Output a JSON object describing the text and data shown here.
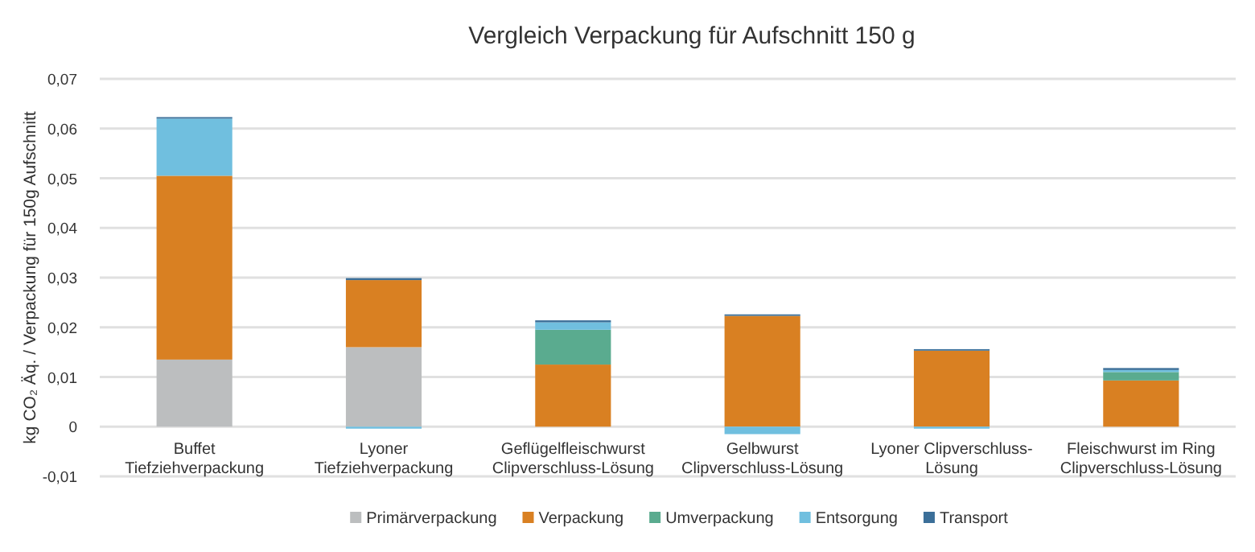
{
  "chart_data": {
    "type": "bar",
    "title": "Vergleich Verpackung für Aufschnitt 150 g",
    "ylabel": "kg CO₂ Äq. / Verpackung für 150g Aufschnitt",
    "stacked": true,
    "grid": "y",
    "legend": "bottom",
    "categories": [
      "Buffet Tiefziehverpackung",
      "Lyoner Tiefziehverpackung",
      "Geflügelfleischwurst Clipverschluss-Lösung",
      "Gelbwurst Clipverschluss-Lösung",
      "Lyoner Clipverschluss-Lösung",
      "Fleischwurst im Ring Clipverschluss-Lösung"
    ],
    "ylim": [
      -0.01,
      0.07
    ],
    "yticks": [
      {
        "value": -0.01,
        "label": "-0,01"
      },
      0,
      {
        "value": 0.01,
        "label": "0,01"
      },
      {
        "value": 0.02,
        "label": "0,02"
      },
      {
        "value": 0.03,
        "label": "0,03"
      },
      {
        "value": 0.04,
        "label": "0,04"
      },
      {
        "value": 0.05,
        "label": "0,05"
      },
      {
        "value": 0.06,
        "label": "0,06"
      },
      {
        "value": 0.07,
        "label": "0,07"
      }
    ],
    "series": [
      {
        "name": "Primärverpackung",
        "color": "#bcbebf",
        "values": [
          0.0135,
          0.016,
          0,
          0,
          0,
          0
        ]
      },
      {
        "name": "Verpackung",
        "color": "#d98022",
        "values": [
          0.037,
          0.0135,
          0.0125,
          0.0223,
          0.0153,
          0.0093
        ]
      },
      {
        "name": "Umverpackung",
        "color": "#5aab8f",
        "values": [
          0,
          0,
          0.007,
          0,
          0,
          0.0017
        ]
      },
      {
        "name": "Entsorgung",
        "color": "#70bfdf",
        "values": [
          0.0115,
          -0.0004,
          0.0015,
          -0.0015,
          -0.0004,
          0.0004
        ]
      },
      {
        "name": "Transport",
        "color": "#3b6f99",
        "values": [
          0.0003,
          0.0004,
          0.0004,
          0.0003,
          0.0003,
          0.0004
        ]
      }
    ]
  }
}
